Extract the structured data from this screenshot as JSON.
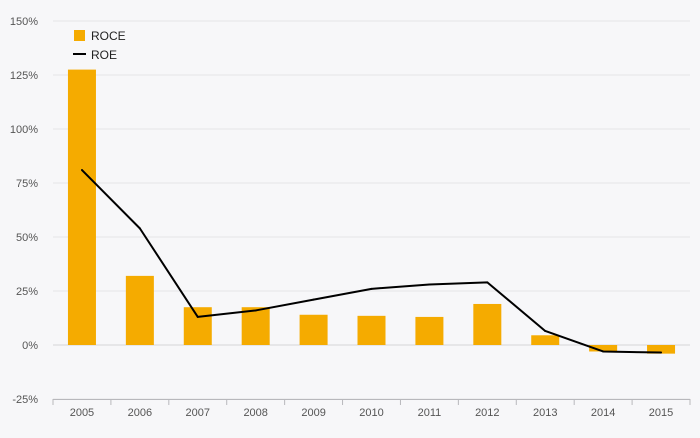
{
  "chart_data": {
    "type": "bar",
    "categories": [
      "2005",
      "2006",
      "2007",
      "2008",
      "2009",
      "2010",
      "2011",
      "2012",
      "2013",
      "2014",
      "2015"
    ],
    "series": [
      {
        "name": "ROCE",
        "type": "bar",
        "color": "#f5ab00",
        "values": [
          127.5,
          32,
          17.5,
          17.5,
          14,
          13.5,
          13,
          19,
          4.5,
          -3,
          -4
        ]
      },
      {
        "name": "ROE",
        "type": "line",
        "color": "#000000",
        "values": [
          81,
          54,
          13,
          16,
          21,
          26,
          28,
          29,
          6.5,
          -3,
          -3.5
        ]
      }
    ],
    "ylim": [
      -25,
      150
    ],
    "yticks": [
      -25,
      0,
      25,
      50,
      75,
      100,
      125,
      150
    ],
    "ytick_labels": [
      "-25%",
      "0%",
      "25%",
      "50%",
      "75%",
      "100%",
      "125%",
      "150%"
    ],
    "title": "",
    "xlabel": "",
    "ylabel": "",
    "grid": "horizontal",
    "legend_position": "top-left",
    "legend": [
      {
        "label": "ROCE",
        "symbol": "square"
      },
      {
        "label": "ROE",
        "symbol": "line"
      }
    ]
  }
}
